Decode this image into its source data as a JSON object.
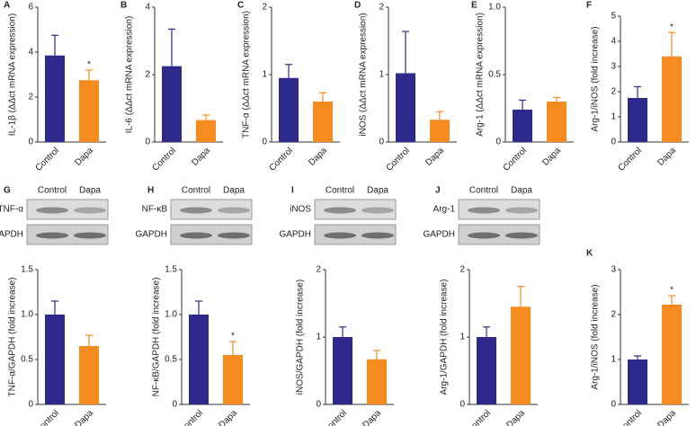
{
  "chart_data": [
    {
      "type": "bar",
      "label": "A",
      "ylabel": "IL-1β (ΔΔct mRNA expression)",
      "categories": [
        "Control",
        "Dapa"
      ],
      "values": [
        3.85,
        2.75
      ],
      "errors": [
        0.9,
        0.45
      ],
      "colors": [
        "#2e2a8c",
        "#f68b1f"
      ],
      "significance": [
        null,
        "*"
      ],
      "ylim": [
        0,
        6
      ],
      "yticks": [
        0,
        2,
        4,
        6
      ]
    },
    {
      "type": "bar",
      "label": "B",
      "ylabel": "IL-6 (ΔΔct mRNA expression)",
      "categories": [
        "Control",
        "Dapa"
      ],
      "values": [
        2.25,
        0.65
      ],
      "errors": [
        1.1,
        0.15
      ],
      "colors": [
        "#2e2a8c",
        "#f68b1f"
      ],
      "ylim": [
        0,
        4
      ],
      "yticks": [
        0,
        2,
        4
      ]
    },
    {
      "type": "bar",
      "label": "C",
      "ylabel": "TNF-α (ΔΔct mRNA expression)",
      "categories": [
        "Control",
        "Dapa"
      ],
      "values": [
        0.95,
        0.6
      ],
      "errors": [
        0.2,
        0.13
      ],
      "colors": [
        "#2e2a8c",
        "#f68b1f"
      ],
      "ylim": [
        0,
        2
      ],
      "yticks": [
        0,
        1,
        2
      ]
    },
    {
      "type": "bar",
      "label": "D",
      "ylabel": "iNOS (ΔΔct mRNA expression)",
      "categories": [
        "Control",
        "Dapa"
      ],
      "values": [
        1.02,
        0.33
      ],
      "errors": [
        0.62,
        0.12
      ],
      "colors": [
        "#2e2a8c",
        "#f68b1f"
      ],
      "ylim": [
        0,
        2
      ],
      "yticks": [
        0,
        1,
        2
      ]
    },
    {
      "type": "bar",
      "label": "E",
      "ylabel": "Arg-1 (ΔΔct mRNA expression)",
      "categories": [
        "Control",
        "Dapa"
      ],
      "values": [
        0.24,
        0.3
      ],
      "errors": [
        0.07,
        0.03
      ],
      "colors": [
        "#2e2a8c",
        "#f68b1f"
      ],
      "ylim": [
        0,
        1
      ],
      "yticks": [
        0,
        0.5,
        {
          "value": 1,
          "label": "1.0"
        }
      ]
    },
    {
      "type": "bar",
      "label": "F",
      "ylabel": "Arg-1/iNOS (fold increase)",
      "categories": [
        "Control",
        "Dapa"
      ],
      "values": [
        1.75,
        3.4
      ],
      "errors": [
        0.45,
        0.95
      ],
      "colors": [
        "#2e2a8c",
        "#f68b1f"
      ],
      "significance": [
        null,
        "*"
      ],
      "ylim": [
        0,
        5
      ],
      "yticks": [
        0,
        1,
        2,
        3,
        4,
        5
      ]
    },
    {
      "type": "bar",
      "label": "G",
      "ylabel": "TNF-α/GAPDH (fold increase)",
      "blot_columns": [
        "Control",
        "Dapa"
      ],
      "blot_bands": [
        "TNF-α",
        "GAPDH"
      ],
      "categories": [
        "Control",
        "Dapa"
      ],
      "values": [
        1.0,
        0.65
      ],
      "errors": [
        0.15,
        0.12
      ],
      "colors": [
        "#2e2a8c",
        "#f68b1f"
      ],
      "ylim": [
        0,
        1.5
      ],
      "yticks": [
        0,
        0.5,
        {
          "value": 1,
          "label": "1.0"
        },
        1.5
      ]
    },
    {
      "type": "bar",
      "label": "H",
      "ylabel": "NF-κB/GAPDH (fold increase)",
      "blot_columns": [
        "Control",
        "Dapa"
      ],
      "blot_bands": [
        "NF-κB",
        "GAPDH"
      ],
      "categories": [
        "Control",
        "Dapa"
      ],
      "values": [
        1.0,
        0.55
      ],
      "errors": [
        0.15,
        0.15
      ],
      "colors": [
        "#2e2a8c",
        "#f68b1f"
      ],
      "significance": [
        null,
        "*"
      ],
      "ylim": [
        0,
        1.5
      ],
      "yticks": [
        0,
        0.5,
        {
          "value": 1,
          "label": "1.0"
        },
        1.5
      ]
    },
    {
      "type": "bar",
      "label": "I",
      "ylabel": "iNOS/GAPDH (fold increase)",
      "blot_columns": [
        "Control",
        "Dapa"
      ],
      "blot_bands": [
        "iNOS",
        "GAPDH"
      ],
      "categories": [
        "Control",
        "Dapa"
      ],
      "values": [
        1.0,
        0.67
      ],
      "errors": [
        0.15,
        0.13
      ],
      "colors": [
        "#2e2a8c",
        "#f68b1f"
      ],
      "ylim": [
        0,
        2
      ],
      "yticks": [
        0,
        1,
        2
      ]
    },
    {
      "type": "bar",
      "label": "J",
      "ylabel": "Arg-1/GAPDH (fold increase)",
      "blot_columns": [
        "Control",
        "Dapa"
      ],
      "blot_bands": [
        "Arg-1",
        "GAPDH"
      ],
      "categories": [
        "Control",
        "Dapa"
      ],
      "values": [
        1.0,
        1.45
      ],
      "errors": [
        0.15,
        0.3
      ],
      "colors": [
        "#2e2a8c",
        "#f68b1f"
      ],
      "ylim": [
        0,
        2
      ],
      "yticks": [
        0,
        1,
        2
      ]
    },
    {
      "type": "bar",
      "label": "K",
      "ylabel": "Arg-1/iNOS (fold increase)",
      "categories": [
        "Control",
        "Dapa"
      ],
      "values": [
        1.0,
        2.22
      ],
      "errors": [
        0.08,
        0.2
      ],
      "colors": [
        "#2e2a8c",
        "#f68b1f"
      ],
      "significance": [
        null,
        "*"
      ],
      "ylim": [
        0,
        3
      ],
      "yticks": [
        0,
        1,
        2,
        3
      ]
    }
  ]
}
